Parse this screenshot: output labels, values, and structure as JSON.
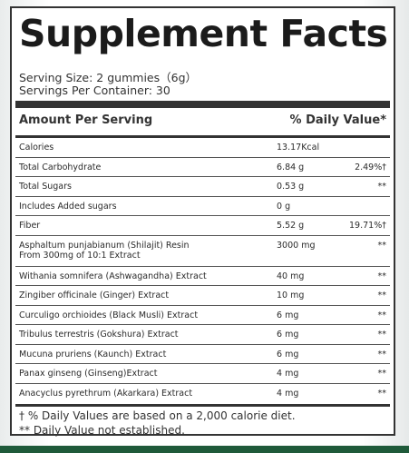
{
  "title": "Supplement Facts",
  "serving_size": "Serving Size: 2 gummies（6g）",
  "servings_per_container": "Servings Per Container: 30",
  "header": {
    "amount_per_serving": "Amount Per Serving",
    "daily_value": "% Daily Value*"
  },
  "rows": [
    {
      "name": "Calories",
      "amount": "13.17Kcal",
      "dv": ""
    },
    {
      "name": "Total Carbohydrate",
      "amount": "6.84 g",
      "dv": "2.49%†"
    },
    {
      "name": "Total Sugars",
      "amount": "0.53 g",
      "dv": "**"
    },
    {
      "name": "Includes Added sugars",
      "amount": "0 g",
      "dv": ""
    },
    {
      "name": "Fiber",
      "amount": "5.52 g",
      "dv": "19.71%†"
    },
    {
      "name": "Asphaltum punjabianum (Shilajit) Resin",
      "name2": "From 300mg of 10:1 Extract",
      "amount": "3000 mg",
      "dv": "**"
    },
    {
      "name": "Withania somnifera (Ashwagandha) Extract",
      "amount": "40 mg",
      "dv": "**"
    },
    {
      "name": "Zingiber officinale (Ginger) Extract",
      "amount": "10 mg",
      "dv": "**"
    },
    {
      "name": "Curculigo orchioides (Black Musli) Extract",
      "amount": "6 mg",
      "dv": "**"
    },
    {
      "name": "Tribulus terrestris (Gokshura) Extract",
      "amount": "6 mg",
      "dv": "**"
    },
    {
      "name": "Mucuna pruriens (Kaunch) Extract",
      "amount": "6 mg",
      "dv": "**"
    },
    {
      "name": "Panax ginseng (Ginseng)Extract",
      "amount": "4 mg",
      "dv": "**"
    },
    {
      "name": "Anacyclus pyrethrum (Akarkara) Extract",
      "amount": "4 mg",
      "dv": "**"
    }
  ],
  "footnotes": {
    "daily_values_note": "† % Daily Values are based on a 2,000 calorie diet.",
    "not_established_note": "** Daily Value not established."
  }
}
